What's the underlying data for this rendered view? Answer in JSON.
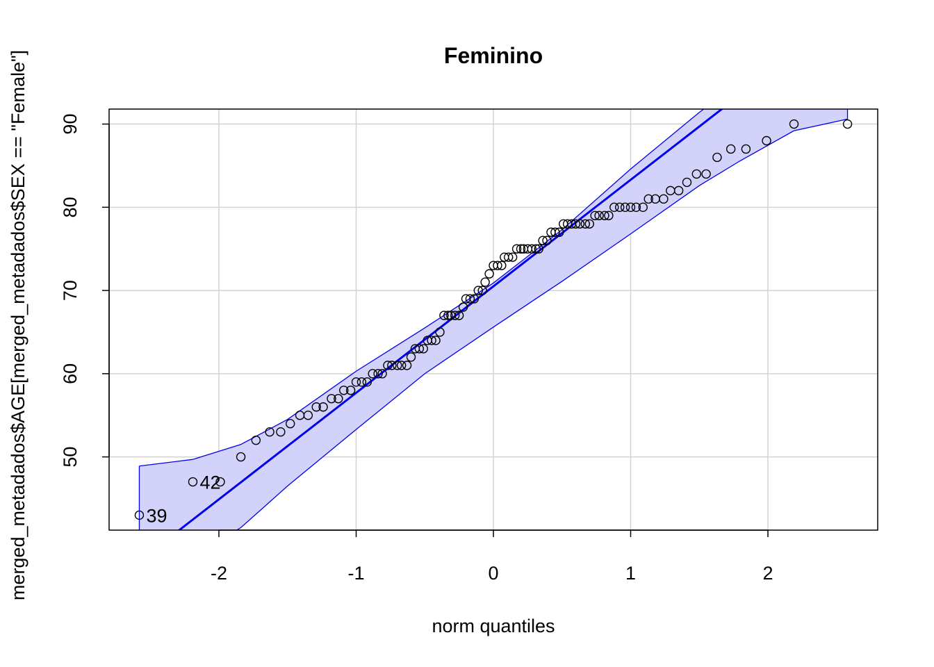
{
  "chart_data": {
    "type": "scatter",
    "title": "Feminino",
    "xlabel": "norm quantiles",
    "ylabel": "merged_metadados$AGE[merged_metadados$SEX == \"Female\"]",
    "xlim": [
      -2.8,
      2.8
    ],
    "ylim": [
      41.2,
      91.8
    ],
    "x_ticks": [
      -2,
      -1,
      0,
      1,
      2
    ],
    "x_tick_labels": [
      "-2",
      "-1",
      "0",
      "1",
      "2"
    ],
    "y_ticks": [
      50,
      60,
      70,
      80,
      90
    ],
    "y_tick_labels": [
      "50",
      "60",
      "70",
      "80",
      "90"
    ],
    "grid": true,
    "colors": {
      "points": "#000000",
      "reference_line": "#0000ee",
      "envelope_fill": "#d2d2fa",
      "envelope_line": "#0000ee",
      "grid": "#d3d3d3"
    },
    "series": [
      {
        "points": [
          [
            -2.58,
            43
          ],
          [
            -2.19,
            47
          ],
          [
            -1.99,
            47
          ],
          [
            -1.84,
            50
          ],
          [
            -1.73,
            52
          ],
          [
            -1.63,
            53
          ],
          [
            -1.55,
            53
          ],
          [
            -1.48,
            54
          ],
          [
            -1.41,
            55
          ],
          [
            -1.35,
            55
          ],
          [
            -1.29,
            56
          ],
          [
            -1.24,
            56
          ],
          [
            -1.18,
            57
          ],
          [
            -1.13,
            57
          ],
          [
            -1.09,
            58
          ],
          [
            -1.04,
            58
          ],
          [
            -1.0,
            59
          ],
          [
            -0.96,
            59
          ],
          [
            -0.92,
            59
          ],
          [
            -0.88,
            60
          ],
          [
            -0.84,
            60
          ],
          [
            -0.81,
            60
          ],
          [
            -0.77,
            61
          ],
          [
            -0.74,
            61
          ],
          [
            -0.7,
            61
          ],
          [
            -0.67,
            61
          ],
          [
            -0.63,
            61
          ],
          [
            -0.6,
            62
          ],
          [
            -0.57,
            63
          ],
          [
            -0.54,
            63
          ],
          [
            -0.51,
            63
          ],
          [
            -0.48,
            64
          ],
          [
            -0.45,
            64
          ],
          [
            -0.42,
            64
          ],
          [
            -0.39,
            65
          ],
          [
            -0.36,
            67
          ],
          [
            -0.33,
            67
          ],
          [
            -0.31,
            67
          ],
          [
            -0.28,
            67
          ],
          [
            -0.25,
            67
          ],
          [
            -0.22,
            68
          ],
          [
            -0.2,
            69
          ],
          [
            -0.17,
            69
          ],
          [
            -0.14,
            69
          ],
          [
            -0.11,
            70
          ],
          [
            -0.08,
            70
          ],
          [
            -0.06,
            71
          ],
          [
            -0.03,
            72
          ],
          [
            0.0,
            73
          ],
          [
            0.03,
            73
          ],
          [
            0.06,
            73
          ],
          [
            0.08,
            74
          ],
          [
            0.11,
            74
          ],
          [
            0.14,
            74
          ],
          [
            0.17,
            75
          ],
          [
            0.2,
            75
          ],
          [
            0.22,
            75
          ],
          [
            0.25,
            75
          ],
          [
            0.28,
            75
          ],
          [
            0.31,
            75
          ],
          [
            0.33,
            75
          ],
          [
            0.36,
            76
          ],
          [
            0.39,
            76
          ],
          [
            0.42,
            77
          ],
          [
            0.45,
            77
          ],
          [
            0.48,
            77
          ],
          [
            0.51,
            78
          ],
          [
            0.54,
            78
          ],
          [
            0.57,
            78
          ],
          [
            0.6,
            78
          ],
          [
            0.63,
            78
          ],
          [
            0.67,
            78
          ],
          [
            0.7,
            78
          ],
          [
            0.74,
            79
          ],
          [
            0.77,
            79
          ],
          [
            0.81,
            79
          ],
          [
            0.84,
            79
          ],
          [
            0.88,
            80
          ],
          [
            0.92,
            80
          ],
          [
            0.96,
            80
          ],
          [
            1.0,
            80
          ],
          [
            1.04,
            80
          ],
          [
            1.09,
            80
          ],
          [
            1.13,
            81
          ],
          [
            1.18,
            81
          ],
          [
            1.24,
            81
          ],
          [
            1.29,
            82
          ],
          [
            1.35,
            82
          ],
          [
            1.41,
            83
          ],
          [
            1.48,
            84
          ],
          [
            1.55,
            84
          ],
          [
            1.63,
            86
          ],
          [
            1.73,
            87
          ],
          [
            1.84,
            87
          ],
          [
            1.99,
            88
          ],
          [
            2.19,
            90
          ],
          [
            2.58,
            90
          ]
        ]
      }
    ],
    "reference_line": {
      "intercept": 70.5,
      "slope": 12.8
    },
    "envelope": {
      "x": [
        -2.58,
        -2.19,
        -1.84,
        -1.5,
        -1.0,
        -0.5,
        0.0,
        0.5,
        1.0,
        1.5,
        1.8,
        2.19,
        2.58
      ],
      "upper": [
        48.9,
        49.7,
        51.5,
        54.5,
        60.3,
        65.5,
        70.9,
        77.3,
        84.6,
        91.4,
        95.1,
        100.4,
        103.0
      ],
      "lower": [
        35.0,
        38.0,
        41.5,
        46.5,
        53.3,
        60.0,
        65.6,
        71.1,
        76.8,
        82.6,
        85.6,
        89.2,
        90.6
      ]
    },
    "point_labels": [
      {
        "text": "39",
        "x": -2.58,
        "y": 43
      },
      {
        "text": "42",
        "x": -2.19,
        "y": 47
      }
    ]
  }
}
